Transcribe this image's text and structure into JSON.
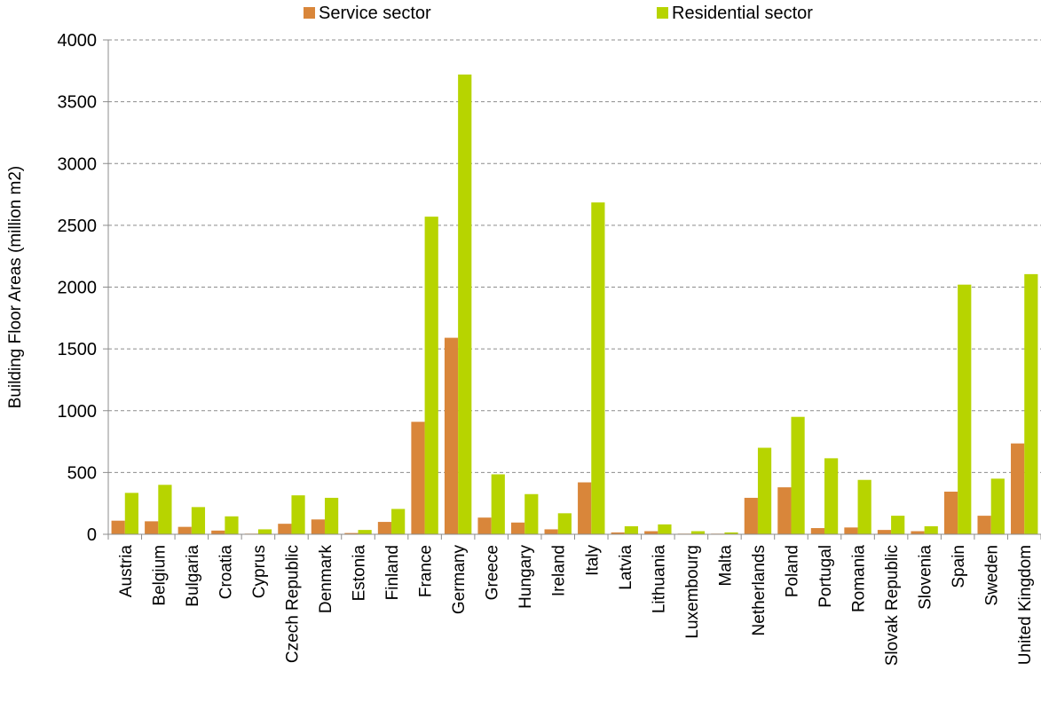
{
  "chart_data": {
    "type": "bar",
    "title": "",
    "xlabel": "",
    "ylabel": "Building Floor Areas (million m2)",
    "ylim": [
      0,
      4000
    ],
    "yticks": [
      0,
      500,
      1000,
      1500,
      2000,
      2500,
      3000,
      3500,
      4000
    ],
    "grid": "horizontal-dashed",
    "legend_position": "top",
    "categories": [
      "Austria",
      "Belgium",
      "Bulgaria",
      "Croatia",
      "Cyprus",
      "Czech Republic",
      "Denmark",
      "Estonia",
      "Finland",
      "France",
      "Germany",
      "Greece",
      "Hungary",
      "Ireland",
      "Italy",
      "Latvia",
      "Lithuania",
      "Luxembourg",
      "Malta",
      "Netherlands",
      "Poland",
      "Portugal",
      "Romania",
      "Slovak Republic",
      "Slovenia",
      "Spain",
      "Sweden",
      "United Kingdom"
    ],
    "series": [
      {
        "name": "Service sector",
        "color": "#D9863A",
        "values": [
          110,
          105,
          60,
          30,
          5,
          85,
          120,
          10,
          100,
          910,
          1590,
          135,
          95,
          40,
          420,
          15,
          25,
          5,
          5,
          295,
          380,
          50,
          55,
          35,
          25,
          345,
          150,
          735
        ]
      },
      {
        "name": "Residential sector",
        "color": "#B7D400",
        "values": [
          335,
          400,
          220,
          145,
          40,
          315,
          295,
          35,
          205,
          2570,
          3720,
          485,
          325,
          170,
          2685,
          65,
          80,
          25,
          15,
          700,
          950,
          615,
          440,
          150,
          65,
          2020,
          450,
          2105
        ]
      }
    ]
  }
}
